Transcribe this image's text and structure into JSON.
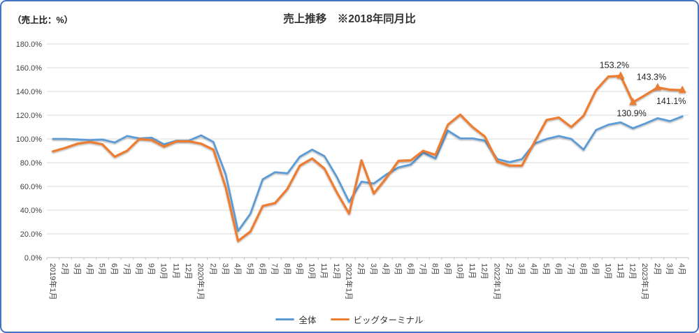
{
  "corner_label": "（売上比：%）",
  "title": "売上推移　※2018年同月比",
  "colors": {
    "overall": "#5B9BD5",
    "big_terminal": "#ED7D31",
    "frame_border": "#4472C4",
    "gridline": "#D9D9D9",
    "axis_line": "#BFBFBF",
    "axis_text": "#404040",
    "annotation_text": "#262626"
  },
  "legend": {
    "overall_label": "全体",
    "big_terminal_label": "ビッグターミナル"
  },
  "chart_data": {
    "type": "line",
    "title": "売上推移　※2018年同月比",
    "unit_note": "（売上比：%）",
    "xlabel": "",
    "ylabel": "売上比（%）",
    "ylim": [
      0,
      180
    ],
    "ytick_step": 20,
    "ytick_labels": [
      "0.0%",
      "20.0%",
      "40.0%",
      "60.0%",
      "80.0%",
      "100.0%",
      "120.0%",
      "140.0%",
      "160.0%",
      "180.0%"
    ],
    "grid": true,
    "legend_position": "bottom",
    "categories": [
      "2019年1月",
      "2月",
      "3月",
      "4月",
      "5月",
      "6月",
      "7月",
      "8月",
      "9月",
      "10月",
      "11月",
      "12月",
      "2020年1月",
      "2月",
      "3月",
      "4月",
      "5月",
      "6月",
      "7月",
      "8月",
      "9月",
      "10月",
      "11月",
      "12月",
      "2021年1月",
      "2月",
      "3月",
      "4月",
      "5月",
      "6月",
      "7月",
      "8月",
      "9月",
      "10月",
      "11月",
      "12月",
      "2022年1月",
      "2月",
      "3月",
      "4月",
      "5月",
      "6月",
      "7月",
      "8月",
      "9月",
      "10月",
      "11月",
      "12月",
      "2023年1月",
      "2月",
      "3月",
      "4月"
    ],
    "series": [
      {
        "name": "全体",
        "color_key": "overall",
        "values": [
          100,
          100,
          99.5,
          99,
          99.5,
          97,
          102.5,
          100.5,
          101,
          95.5,
          98.5,
          98.5,
          103,
          97.5,
          70,
          22.5,
          37,
          66,
          72,
          71,
          85,
          91,
          85.5,
          68,
          47,
          64,
          62.5,
          70,
          76,
          78.5,
          88.5,
          83.5,
          107,
          100.5,
          100.5,
          98.5,
          83,
          80.5,
          83,
          96,
          100,
          102.5,
          100,
          91,
          107.5,
          112,
          114,
          109,
          113,
          117.5,
          115,
          119
        ]
      },
      {
        "name": "ビッグターミナル",
        "color_key": "big_terminal",
        "values": [
          89.5,
          92.5,
          96,
          97.5,
          95.5,
          85,
          90,
          100,
          99,
          93.5,
          98,
          98,
          96,
          91,
          59,
          14,
          22,
          43.5,
          46,
          58,
          77.5,
          83.5,
          75,
          55,
          37,
          82,
          54,
          67,
          81.5,
          82,
          90,
          86.5,
          112,
          120.5,
          110,
          102,
          81,
          77.5,
          77.5,
          97,
          116,
          118,
          110,
          119.5,
          141,
          152.5,
          153.2,
          130.9,
          137,
          143.3,
          141.5,
          141.1
        ]
      }
    ],
    "annotations": [
      {
        "series_index": 1,
        "index": 46,
        "text": "153.2%",
        "placement": "above"
      },
      {
        "series_index": 1,
        "index": 47,
        "text": "130.9%",
        "placement": "below"
      },
      {
        "series_index": 1,
        "index": 49,
        "text": "143.3%",
        "placement": "above"
      },
      {
        "series_index": 1,
        "index": 51,
        "text": "141.1%",
        "placement": "below"
      }
    ]
  }
}
